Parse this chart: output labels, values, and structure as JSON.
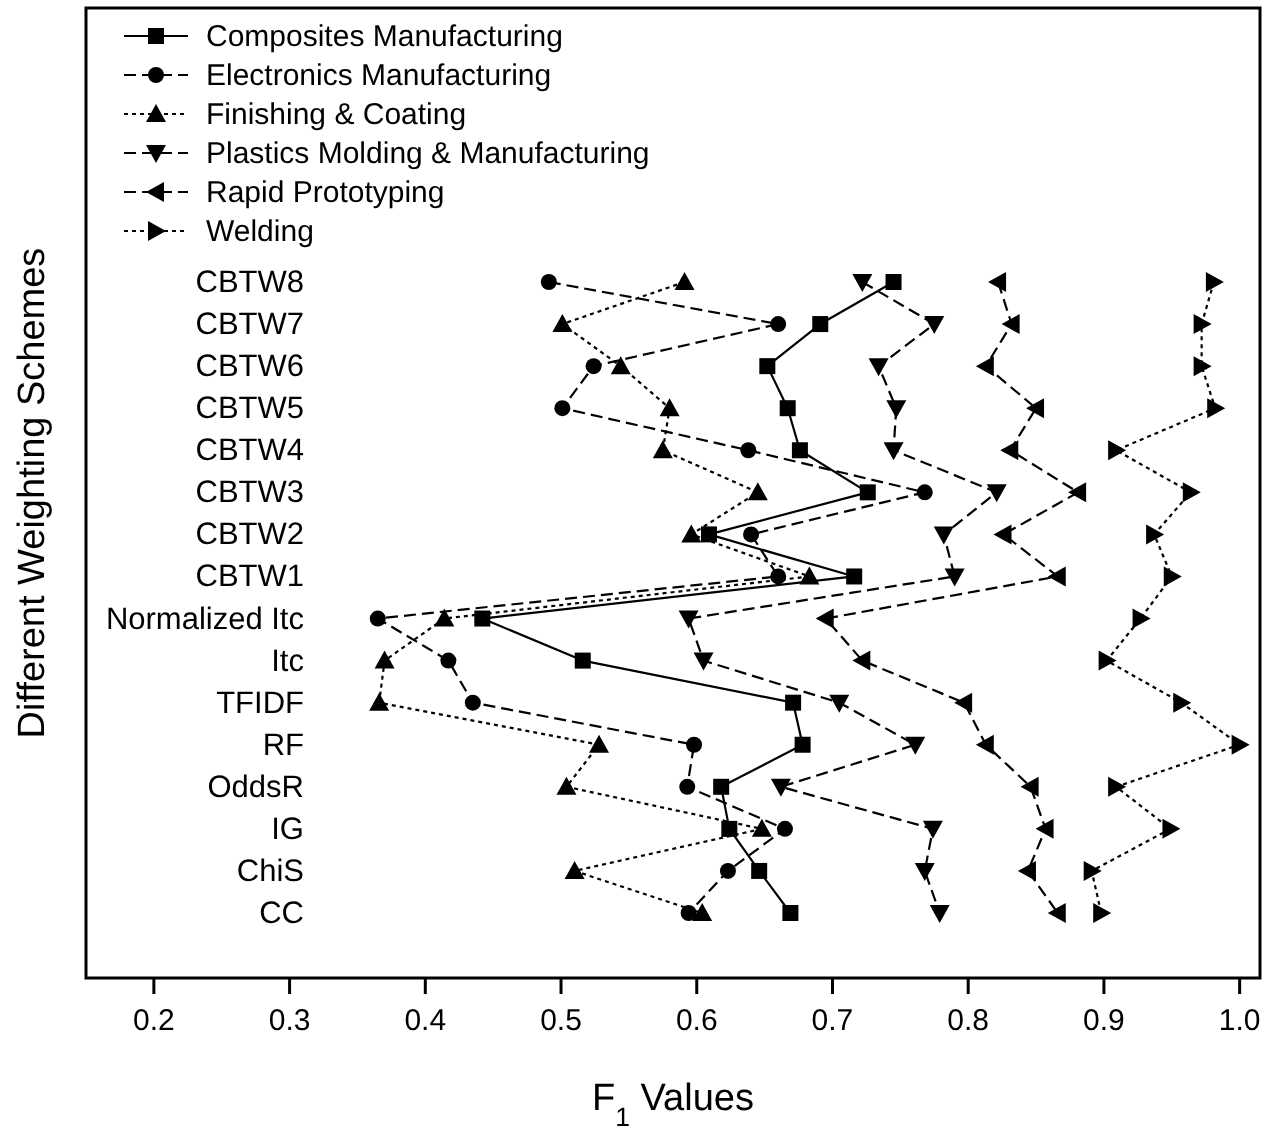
{
  "chart_data": {
    "type": "line",
    "xlabel": "F$_{1}$ Values",
    "ylabel": "Different Weighting Schemes",
    "orientation": "horizontal",
    "categories": [
      "CBTW8",
      "CBTW7",
      "CBTW6",
      "CBTW5",
      "CBTW4",
      "CBTW3",
      "CBTW2",
      "CBTW1",
      "Normalized Itc",
      "Itc",
      "TFIDF",
      "RF",
      "OddsR",
      "IG",
      "ChiS",
      "CC"
    ],
    "xlim": [
      0.15,
      1.015
    ],
    "xticks": [
      0.2,
      0.3,
      0.4,
      0.5,
      0.6,
      0.7,
      0.8,
      0.9,
      {
        "value": 1,
        "label": "1.0"
      }
    ],
    "legend": "top left",
    "grid": false,
    "series": [
      {
        "name": "Composites Manufacturing",
        "color": "#000000",
        "marker": "square",
        "line_style": "solid",
        "values": [
          0.745,
          0.691,
          0.652,
          0.667,
          0.676,
          0.726,
          0.609,
          0.716,
          0.442,
          0.516,
          0.671,
          0.678,
          0.618,
          0.624,
          0.646,
          0.669
        ]
      },
      {
        "name": "Electronics Manufacturing",
        "color": "#000000",
        "marker": "circle",
        "line_style": "dashed",
        "values": [
          0.491,
          0.66,
          0.524,
          0.501,
          0.638,
          0.768,
          0.64,
          0.66,
          0.365,
          0.417,
          0.435,
          0.598,
          0.593,
          0.665,
          0.623,
          0.594
        ]
      },
      {
        "name": "Finishing & Coating",
        "color": "#000000",
        "marker": "triangle",
        "line_style": "dotted",
        "values": [
          0.591,
          0.501,
          0.544,
          0.58,
          0.575,
          0.645,
          0.596,
          0.683,
          0.414,
          0.37,
          0.366,
          0.528,
          0.504,
          0.648,
          0.51,
          0.604
        ]
      },
      {
        "name": "Plastics Molding & Manufacturing",
        "color": "#000000",
        "marker": "triangle-down",
        "line_style": "dashed",
        "values": [
          0.722,
          0.775,
          0.734,
          0.747,
          0.745,
          0.821,
          0.782,
          0.79,
          0.594,
          0.605,
          0.705,
          0.761,
          0.662,
          0.774,
          0.768,
          0.779
        ]
      },
      {
        "name": "Rapid Prototyping",
        "color": "#000000",
        "marker": "triangle-left",
        "line_style": "dashed",
        "values": [
          0.822,
          0.832,
          0.813,
          0.85,
          0.831,
          0.881,
          0.826,
          0.866,
          0.695,
          0.722,
          0.797,
          0.813,
          0.846,
          0.857,
          0.844,
          0.866
        ]
      },
      {
        "name": "Welding",
        "color": "#000000",
        "marker": "triangle-right",
        "line_style": "dotted",
        "values": [
          0.981,
          0.972,
          0.972,
          0.982,
          0.909,
          0.964,
          0.937,
          0.95,
          0.927,
          0.902,
          0.957,
          1.0,
          0.909,
          0.949,
          0.891,
          0.898
        ]
      }
    ]
  }
}
